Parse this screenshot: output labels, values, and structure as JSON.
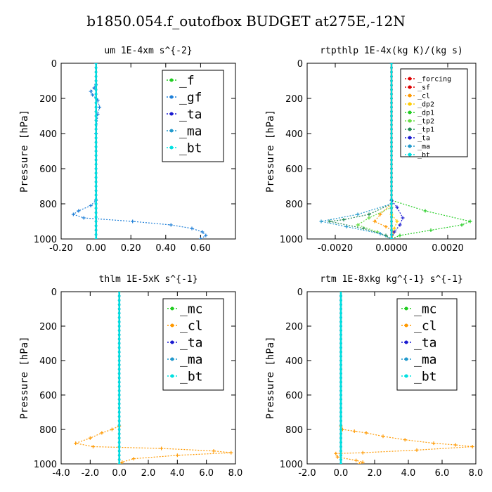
{
  "title": "b1850.054.f_outofbox  BUDGET at275E,-12N",
  "colors": {
    "_f": "#22cc22",
    "_gf": "#1e7fd8",
    "_ta": "#1a1ad0",
    "_ma": "#2299cc",
    "_bt": "#00e0e0",
    "_forcing": "#dd0000",
    "_sf": "#dd0000",
    "_cl": "#ff9900",
    "_dp2": "#ffcc00",
    "_dp1": "#22cc22",
    "_tp2": "#66dd44",
    "_tp1": "#228855",
    "_mc": "#22cc22"
  },
  "chart_data": [
    {
      "type": "line",
      "title": "um  1E-4xm s^{-2}",
      "ylabel": "Pressure [hPa]",
      "xlim": [
        -0.2,
        0.8
      ],
      "ylim": [
        1000,
        0
      ],
      "grid": false,
      "xticks": [
        "-0.20",
        "0.00",
        "0.20",
        "0.40",
        "0.60"
      ],
      "yticks": [
        "0",
        "200",
        "400",
        "600",
        "800",
        "1000"
      ],
      "legend": {
        "placement": "top-right",
        "entries": [
          "_f",
          "_gf",
          "_ta",
          "_ma",
          "_bt"
        ]
      },
      "series": [
        {
          "name": "_f",
          "x": [
            0,
            0
          ],
          "y": [
            0,
            1000
          ]
        },
        {
          "name": "_gf",
          "x": [
            0,
            0,
            -0.01,
            -0.03,
            -0.02,
            0.01,
            0.02,
            0.01,
            0,
            0,
            -0.03,
            -0.1,
            -0.13,
            -0.07,
            0.21,
            0.43,
            0.55,
            0.61,
            0.63,
            0.6
          ],
          "y": [
            0,
            120,
            140,
            160,
            180,
            210,
            250,
            290,
            400,
            780,
            810,
            840,
            860,
            880,
            900,
            920,
            940,
            960,
            980,
            1000
          ]
        },
        {
          "name": "_ta",
          "x": [
            0,
            0
          ],
          "y": [
            0,
            1000
          ]
        },
        {
          "name": "_ma",
          "x": [
            0,
            0
          ],
          "y": [
            0,
            1000
          ]
        },
        {
          "name": "_bt",
          "x": [
            0,
            0
          ],
          "y": [
            0,
            1000
          ]
        }
      ]
    },
    {
      "type": "line",
      "title": "rtpthlp  1E-4x(kg K)/(kg s)",
      "ylabel": "Pressure [hPa]",
      "xlim": [
        -0.003,
        0.003
      ],
      "ylim": [
        1000,
        0
      ],
      "grid": false,
      "xticks": [
        "-0.0020",
        "0.0000",
        "0.0020"
      ],
      "yticks": [
        "0",
        "200",
        "400",
        "600",
        "800",
        "1000"
      ],
      "legend": {
        "placement": "top-right",
        "entries": [
          "_forcing",
          "_sf",
          "_cl",
          "_dp2",
          "_dp1",
          "_tp2",
          "_tp1",
          "_ta",
          "_ma",
          "_bt"
        ]
      },
      "series": [
        {
          "name": "_forcing",
          "x": [
            0,
            0
          ],
          "y": [
            0,
            1000
          ]
        },
        {
          "name": "_sf",
          "x": [
            0,
            0
          ],
          "y": [
            0,
            1000
          ]
        },
        {
          "name": "_cl",
          "x": [
            0,
            0,
            -0.0004,
            -0.0006,
            -0.0002,
            0.0001,
            0
          ],
          "y": [
            0,
            800,
            860,
            900,
            930,
            960,
            1000
          ]
        },
        {
          "name": "_dp2",
          "x": [
            0,
            0,
            0.0002,
            0.0001,
            0
          ],
          "y": [
            0,
            860,
            900,
            940,
            1000
          ]
        },
        {
          "name": "_dp1",
          "x": [
            0,
            0,
            0.0012,
            0.0028,
            0.0025,
            0.0014,
            0.0003,
            0
          ],
          "y": [
            0,
            780,
            840,
            900,
            920,
            950,
            980,
            1000
          ]
        },
        {
          "name": "_tp2",
          "x": [
            0,
            0,
            -0.0008,
            -0.0012,
            -0.0005,
            0
          ],
          "y": [
            0,
            820,
            880,
            920,
            960,
            1000
          ]
        },
        {
          "name": "_tp1",
          "x": [
            0,
            0,
            -0.0008,
            -0.0017,
            -0.0022,
            -0.001,
            -0.0002,
            0
          ],
          "y": [
            0,
            800,
            860,
            890,
            900,
            940,
            980,
            1000
          ]
        },
        {
          "name": "_ta",
          "x": [
            0,
            0,
            0.0002,
            0.0004,
            0.0003,
            0.0001,
            0
          ],
          "y": [
            0,
            780,
            820,
            880,
            920,
            960,
            1000
          ]
        },
        {
          "name": "_ma",
          "x": [
            0,
            0,
            -0.0012,
            -0.0025,
            -0.0016,
            -0.0004,
            0
          ],
          "y": [
            0,
            800,
            860,
            900,
            930,
            970,
            1000
          ]
        },
        {
          "name": "_bt",
          "x": [
            0,
            0
          ],
          "y": [
            0,
            1000
          ]
        }
      ]
    },
    {
      "type": "line",
      "title": "thlm  1E-5xK s^{-1}",
      "ylabel": "Pressure [hPa]",
      "xlim": [
        -4.0,
        8.0
      ],
      "ylim": [
        1000,
        0
      ],
      "grid": false,
      "xticks": [
        "-4.0",
        "-2.0",
        "0.0",
        "2.0",
        "4.0",
        "6.0",
        "8.0"
      ],
      "yticks": [
        "0",
        "200",
        "400",
        "600",
        "800",
        "1000"
      ],
      "legend": {
        "placement": "top-right",
        "entries": [
          "_mc",
          "_cl",
          "_ta",
          "_ma",
          "_bt"
        ]
      },
      "series": [
        {
          "name": "_mc",
          "x": [
            0,
            0
          ],
          "y": [
            0,
            1000
          ]
        },
        {
          "name": "_cl",
          "x": [
            0,
            0,
            -0.5,
            -1.2,
            -2.0,
            -3.0,
            -1.8,
            2.9,
            6.5,
            7.7,
            4.0,
            1.0,
            0.2,
            0
          ],
          "y": [
            0,
            780,
            800,
            820,
            850,
            880,
            900,
            910,
            925,
            935,
            950,
            970,
            990,
            1000
          ]
        },
        {
          "name": "_ta",
          "x": [
            0,
            0
          ],
          "y": [
            0,
            1000
          ]
        },
        {
          "name": "_ma",
          "x": [
            0,
            0
          ],
          "y": [
            0,
            1000
          ]
        },
        {
          "name": "_bt",
          "x": [
            0,
            0
          ],
          "y": [
            0,
            1000
          ]
        }
      ]
    },
    {
      "type": "line",
      "title": "rtm  1E-8xkg kg^{-1} s^{-1}",
      "ylabel": "Pressure [hPa]",
      "xlim": [
        -2.0,
        8.0
      ],
      "ylim": [
        1000,
        0
      ],
      "grid": false,
      "xticks": [
        "-2.0",
        "0.0",
        "2.0",
        "4.0",
        "6.0",
        "8.0"
      ],
      "yticks": [
        "0",
        "200",
        "400",
        "600",
        "800",
        "1000"
      ],
      "legend": {
        "placement": "top-right",
        "entries": [
          "_mc",
          "_cl",
          "_ta",
          "_ma",
          "_bt"
        ]
      },
      "series": [
        {
          "name": "_mc",
          "x": [
            0,
            0
          ],
          "y": [
            0,
            1000
          ]
        },
        {
          "name": "_cl",
          "x": [
            0,
            0,
            0.1,
            0.8,
            1.5,
            2.5,
            3.8,
            5.5,
            6.8,
            7.8,
            4.5,
            1.3,
            -0.3,
            -0.2,
            0.9,
            1.3,
            1.1
          ],
          "y": [
            0,
            780,
            800,
            810,
            820,
            840,
            860,
            880,
            890,
            900,
            920,
            935,
            940,
            960,
            980,
            990,
            1000
          ]
        },
        {
          "name": "_ta",
          "x": [
            0,
            0
          ],
          "y": [
            0,
            1000
          ]
        },
        {
          "name": "_ma",
          "x": [
            0,
            0
          ],
          "y": [
            0,
            1000
          ]
        },
        {
          "name": "_bt",
          "x": [
            0,
            0
          ],
          "y": [
            0,
            1000
          ]
        }
      ]
    }
  ]
}
